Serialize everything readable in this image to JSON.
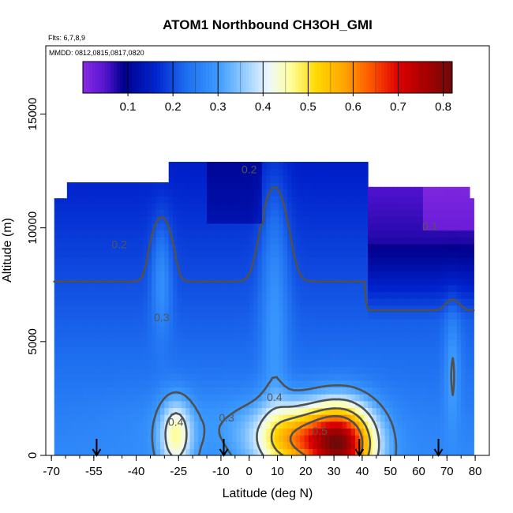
{
  "chart_data": {
    "type": "heatmap",
    "title": "ATOM1 Northbound CH3OH_GMI",
    "flights_note": "Flts: 6,7,8,9",
    "dates_note": "MMDD: 0812,0815,0817,0820",
    "xlabel": "Latitude (deg N)",
    "ylabel": "Altitude (m)",
    "xlim": [
      -72,
      85
    ],
    "ylim": [
      0,
      18000
    ],
    "x_ticks": [
      -70,
      -55,
      -40,
      -25,
      -10,
      0,
      10,
      20,
      30,
      40,
      50,
      60,
      70,
      80
    ],
    "y_ticks": [
      0,
      5000,
      10000,
      15000
    ],
    "grid": false,
    "colorbar": {
      "range": [
        0,
        0.82
      ],
      "ticks": [
        0.1,
        0.2,
        0.3,
        0.4,
        0.5,
        0.6,
        0.7,
        0.8
      ],
      "placement": "top"
    },
    "flight_markers_lat": [
      -54,
      -9,
      39,
      67
    ],
    "contour_labels": [
      {
        "text": "0.2",
        "lat": 0,
        "alt": 12400
      },
      {
        "text": "0.1",
        "lat": 64,
        "alt": 9900
      },
      {
        "text": "0.2",
        "lat": -46,
        "alt": 9100
      },
      {
        "text": "0.3",
        "lat": -31,
        "alt": 5900
      },
      {
        "text": "0.4",
        "lat": 9,
        "alt": 2400
      },
      {
        "text": "0.3",
        "lat": -8,
        "alt": 1500
      },
      {
        "text": "0.4",
        "lat": -26,
        "alt": 1300
      },
      {
        "text": "0.5",
        "lat": 25,
        "alt": 900
      }
    ]
  }
}
